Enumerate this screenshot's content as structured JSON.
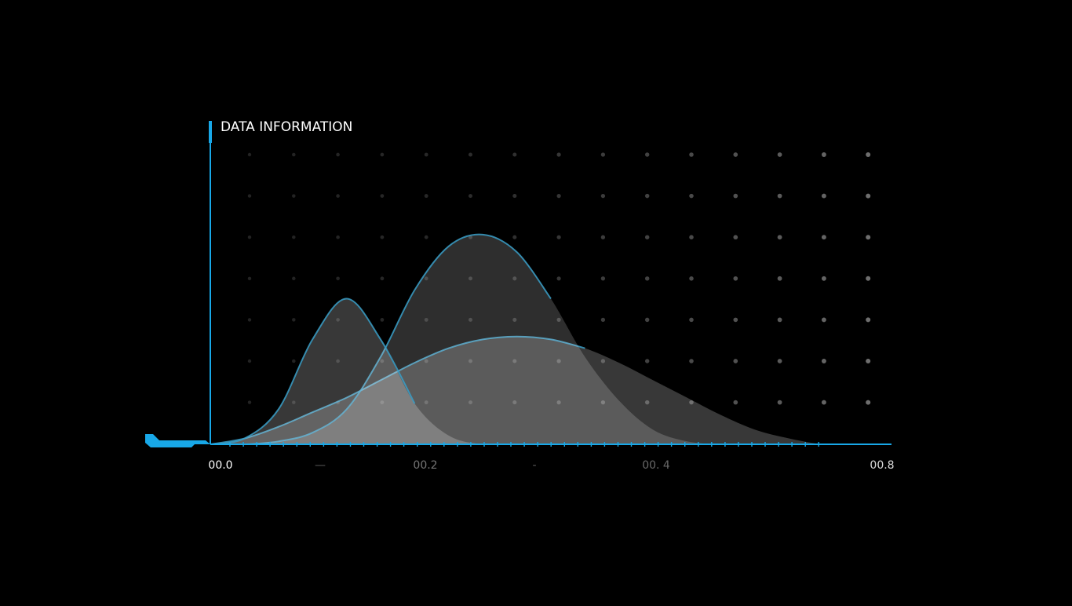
{
  "chart_data": {
    "type": "area",
    "title": "DATA INFORMATION",
    "xlabel": "",
    "ylabel": "",
    "xlim": [
      0.0,
      0.8
    ],
    "ylim": [
      0,
      1.0
    ],
    "grid": true,
    "tick_labels": [
      "00.0",
      "—",
      "00.2",
      "-",
      "00. 4",
      "",
      "00.8"
    ],
    "series": [
      {
        "x": [
          0.0,
          0.04,
          0.08,
          0.12,
          0.16,
          0.2,
          0.24,
          0.28,
          0.32,
          0.36,
          0.4,
          0.44,
          0.48,
          0.52,
          0.56,
          0.6,
          0.64,
          0.68,
          0.72,
          0.76,
          0.8
        ],
        "values": [
          0.0,
          0.02,
          0.06,
          0.11,
          0.16,
          0.22,
          0.28,
          0.33,
          0.36,
          0.37,
          0.36,
          0.33,
          0.28,
          0.22,
          0.16,
          0.1,
          0.05,
          0.02,
          0.0,
          0.0,
          0.0
        ]
      },
      {
        "x": [
          0.0,
          0.04,
          0.08,
          0.12,
          0.16,
          0.2,
          0.24,
          0.28,
          0.32,
          0.36,
          0.4,
          0.44,
          0.48,
          0.52,
          0.56,
          0.6,
          0.64,
          0.68,
          0.72,
          0.76,
          0.8
        ],
        "values": [
          0.0,
          0.0,
          0.01,
          0.04,
          0.12,
          0.3,
          0.53,
          0.68,
          0.72,
          0.66,
          0.5,
          0.3,
          0.15,
          0.05,
          0.01,
          0.0,
          0.0,
          0.0,
          0.0,
          0.0,
          0.0
        ]
      },
      {
        "x": [
          0.0,
          0.04,
          0.08,
          0.12,
          0.16,
          0.2,
          0.24,
          0.28,
          0.32,
          0.36,
          0.4,
          0.44,
          0.48,
          0.52,
          0.56,
          0.6,
          0.64,
          0.68,
          0.72,
          0.76,
          0.8
        ],
        "values": [
          0.0,
          0.02,
          0.12,
          0.36,
          0.5,
          0.36,
          0.14,
          0.03,
          0.0,
          0.0,
          0.0,
          0.0,
          0.0,
          0.0,
          0.0,
          0.0,
          0.0,
          0.0,
          0.0,
          0.0,
          0.0
        ]
      }
    ]
  },
  "colors": {
    "background": "#000000",
    "accent": "#18a8e8",
    "curve_stroke": "#3a9fc8",
    "fill": "#ffffff",
    "text": "#ffffff",
    "grid_dot": "#8a8a8a"
  }
}
